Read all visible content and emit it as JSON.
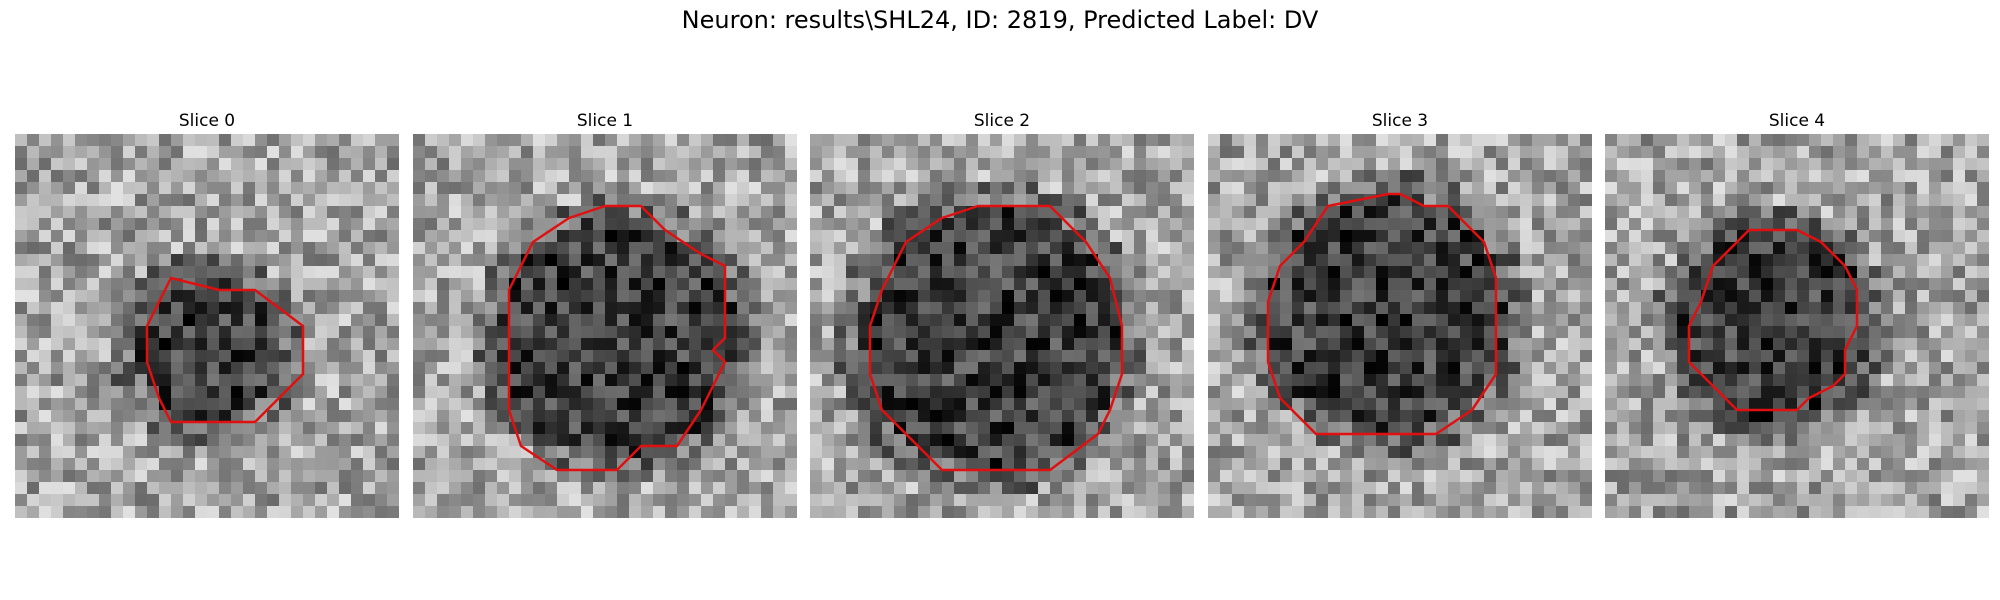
{
  "figure": {
    "title": "Neuron: results\\SHL24, ID: 2819, Predicted Label: DV"
  },
  "style": {
    "contour_color": "#e01010",
    "grid_size": 32
  },
  "panels": [
    {
      "title": "Slice 0",
      "contour": [
        [
          17,
          13
        ],
        [
          20,
          13
        ],
        [
          24,
          16
        ],
        [
          24,
          20
        ],
        [
          20,
          24
        ],
        [
          13,
          24
        ],
        [
          12,
          22
        ],
        [
          11,
          19
        ],
        [
          11,
          16
        ],
        [
          13,
          12
        ]
      ],
      "dark_center": [
        16,
        18
      ],
      "dark_radius": 6
    },
    {
      "title": "Slice 1",
      "contour": [
        [
          16,
          6
        ],
        [
          19,
          6
        ],
        [
          21,
          8
        ],
        [
          24,
          10
        ],
        [
          26,
          11
        ],
        [
          26,
          15
        ],
        [
          26,
          17
        ],
        [
          25,
          18
        ],
        [
          26,
          19
        ],
        [
          25,
          21
        ],
        [
          24,
          23
        ],
        [
          22,
          26
        ],
        [
          19,
          26
        ],
        [
          17,
          28
        ],
        [
          12,
          28
        ],
        [
          9,
          26
        ],
        [
          8,
          23
        ],
        [
          8,
          19
        ],
        [
          8,
          13
        ],
        [
          10,
          9
        ],
        [
          13,
          7
        ]
      ],
      "dark_center": [
        17,
        17
      ],
      "dark_radius": 10
    },
    {
      "title": "Slice 2",
      "contour": [
        [
          14,
          6
        ],
        [
          20,
          6
        ],
        [
          23,
          9
        ],
        [
          25,
          12
        ],
        [
          26,
          16
        ],
        [
          26,
          20
        ],
        [
          25,
          23
        ],
        [
          24,
          25
        ],
        [
          20,
          28
        ],
        [
          11,
          28
        ],
        [
          8,
          25
        ],
        [
          6,
          23
        ],
        [
          5,
          20
        ],
        [
          5,
          16
        ],
        [
          6,
          13
        ],
        [
          8,
          9
        ],
        [
          11,
          7
        ]
      ],
      "dark_center": [
        15,
        17
      ],
      "dark_radius": 11
    },
    {
      "title": "Slice 3",
      "contour": [
        [
          15,
          5
        ],
        [
          16,
          5
        ],
        [
          18,
          6
        ],
        [
          20,
          6
        ],
        [
          23,
          9
        ],
        [
          24,
          12
        ],
        [
          24,
          14
        ],
        [
          24,
          20
        ],
        [
          22,
          23
        ],
        [
          19,
          25
        ],
        [
          9,
          25
        ],
        [
          6,
          22
        ],
        [
          5,
          19
        ],
        [
          5,
          14
        ],
        [
          6,
          11
        ],
        [
          8,
          9
        ],
        [
          10,
          6
        ]
      ],
      "dark_center": [
        15,
        15
      ],
      "dark_radius": 10
    },
    {
      "title": "Slice 4",
      "contour": [
        [
          12,
          8
        ],
        [
          16,
          8
        ],
        [
          18,
          9
        ],
        [
          20,
          11
        ],
        [
          21,
          13
        ],
        [
          21,
          16
        ],
        [
          20,
          18
        ],
        [
          20,
          20
        ],
        [
          19,
          21
        ],
        [
          17,
          22
        ],
        [
          16,
          23
        ],
        [
          11,
          23
        ],
        [
          10,
          22
        ],
        [
          9,
          21
        ],
        [
          7,
          19
        ],
        [
          7,
          16
        ],
        [
          8,
          14
        ],
        [
          9,
          11
        ]
      ],
      "dark_center": [
        14,
        16
      ],
      "dark_radius": 8
    }
  ]
}
